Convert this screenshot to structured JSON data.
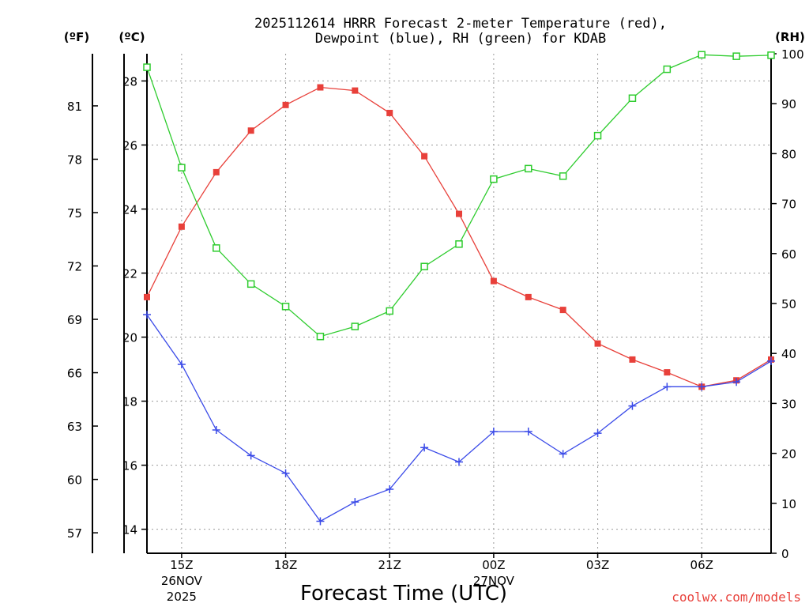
{
  "chart_data": {
    "type": "line",
    "title_line1": "2025112614 HRRR Forecast 2-meter Temperature (red),",
    "title_line2": "Dewpoint (blue), RH (green) for KDAB",
    "xlabel": "Forecast Time (UTC)",
    "credit": "coolwx.com/models",
    "units": {
      "fahrenheit": "(ºF)",
      "celsius": "(ºC)",
      "rh": "(RH)"
    },
    "x_hours": [
      14,
      15,
      16,
      17,
      18,
      19,
      20,
      21,
      22,
      23,
      24,
      25,
      26,
      27,
      28,
      29,
      30,
      31,
      32
    ],
    "xlim": [
      14,
      32
    ],
    "x_ticks": [
      {
        "hour": 15,
        "label": "15Z",
        "date": "26NOV",
        "year": "2025"
      },
      {
        "hour": 18,
        "label": "18Z"
      },
      {
        "hour": 21,
        "label": "21Z"
      },
      {
        "hour": 24,
        "label": "00Z",
        "date": "27NOV"
      },
      {
        "hour": 27,
        "label": "03Z"
      },
      {
        "hour": 30,
        "label": "06Z"
      }
    ],
    "celsius_axis": {
      "ylim": [
        13.25,
        28.85
      ],
      "ticks": [
        14,
        16,
        18,
        20,
        22,
        24,
        26,
        28
      ]
    },
    "fahrenheit_axis": {
      "ticks": [
        57,
        60,
        63,
        66,
        69,
        72,
        75,
        78,
        81
      ]
    },
    "rh_axis": {
      "ylim": [
        0,
        100
      ],
      "ticks": [
        0,
        10,
        20,
        30,
        40,
        50,
        60,
        70,
        80,
        90,
        100
      ]
    },
    "series": [
      {
        "name": "2-meter Temperature",
        "axis": "celsius",
        "color": "#e8403a",
        "marker": "filled-square",
        "values": [
          21.25,
          23.45,
          25.15,
          26.45,
          27.25,
          27.8,
          27.7,
          27.0,
          25.65,
          23.85,
          21.75,
          21.25,
          20.85,
          19.8,
          19.3,
          18.9,
          18.45,
          18.65,
          19.3
        ]
      },
      {
        "name": "Dewpoint",
        "axis": "celsius",
        "color": "#3a4ae8",
        "marker": "plus",
        "values": [
          20.7,
          19.15,
          17.1,
          16.3,
          15.75,
          14.25,
          14.85,
          15.25,
          16.55,
          16.1,
          17.05,
          17.05,
          16.35,
          17.0,
          17.85,
          18.45,
          18.45,
          18.6,
          19.25
        ]
      },
      {
        "name": "RH",
        "axis": "rh",
        "color": "#2ecc2e",
        "marker": "open-square",
        "values": [
          97.3,
          77.2,
          61.1,
          53.9,
          49.4,
          43.4,
          45.4,
          48.5,
          57.4,
          61.9,
          74.9,
          77.0,
          75.5,
          83.6,
          91.1,
          96.9,
          99.8,
          99.5,
          99.7
        ]
      }
    ]
  }
}
